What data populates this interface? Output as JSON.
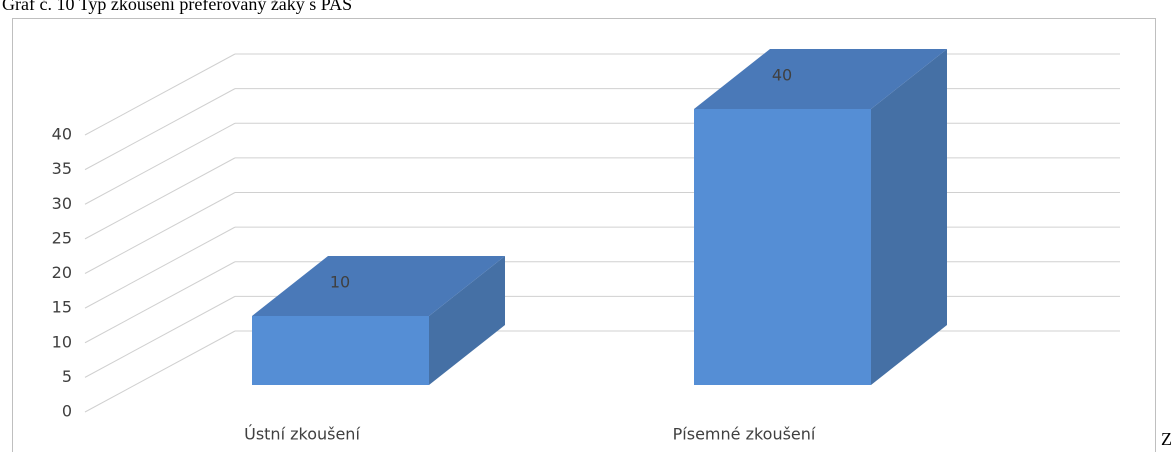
{
  "chart_data": {
    "type": "bar3d",
    "title": "Graf č. 10 Typ zkoušení preferovaný žáky s PAS",
    "categories": [
      "Ústní zkoušení",
      "Písemné zkoušení"
    ],
    "values": [
      10,
      40
    ],
    "color": "#558ed5",
    "ylim": [
      0,
      40
    ],
    "yticks": [
      0,
      5,
      10,
      15,
      20,
      25,
      30,
      35,
      40
    ],
    "grid": true,
    "annotation": "Z"
  }
}
